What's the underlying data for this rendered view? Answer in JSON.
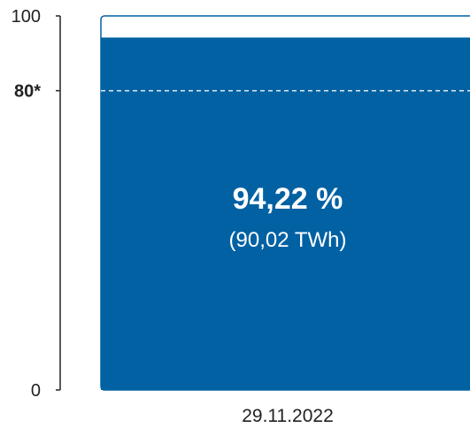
{
  "chart_data": {
    "type": "bar",
    "categories": [
      "29.11.2022"
    ],
    "values": [
      94.22
    ],
    "ylim": [
      0,
      100
    ],
    "yticks": [
      {
        "value": 100,
        "label": "100"
      },
      {
        "value": 80,
        "label": "80*"
      },
      {
        "value": 0,
        "label": "0"
      }
    ],
    "reference_line": {
      "value": 80
    },
    "data_label": {
      "percent": "94,22 %",
      "energy": "(90,02 TWh)"
    },
    "colors": {
      "fill": "#0161a3",
      "outline": "#0161a3",
      "axis": "#222222",
      "text": "#222222",
      "label": "#ffffff",
      "reference": "#e8eef6"
    }
  }
}
